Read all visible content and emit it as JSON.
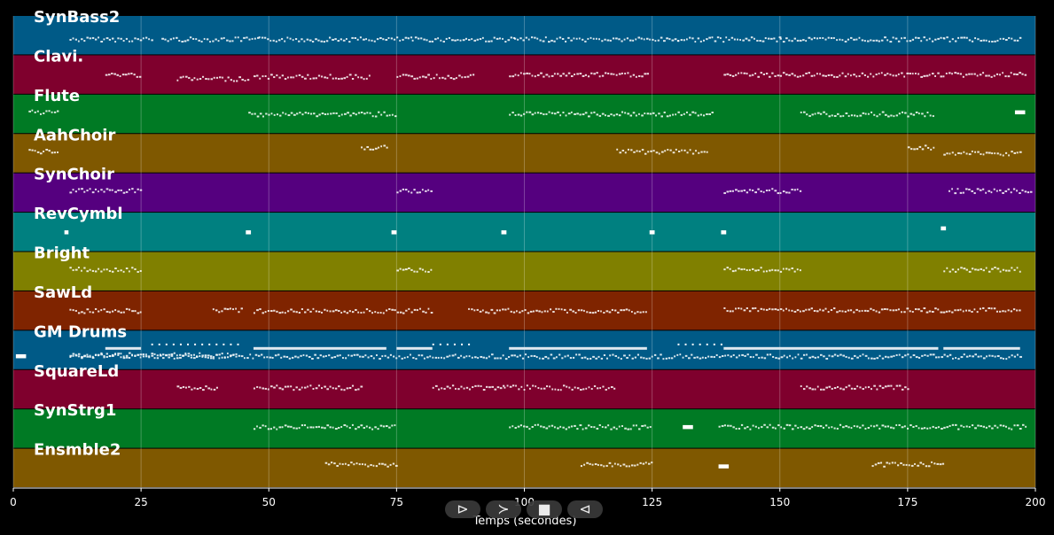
{
  "chart_data": {
    "type": "piano-roll",
    "xlabel": "Temps (secondes)",
    "xlim": [
      0,
      200
    ],
    "xticks": [
      0,
      25,
      50,
      75,
      100,
      125,
      150,
      175,
      200
    ],
    "grid": true,
    "tracks": [
      {
        "name": "SynBass2",
        "color": "#005a87",
        "notes": [
          [
            11,
            27,
            0.6
          ],
          [
            29,
            48,
            0.6
          ],
          [
            48,
            78,
            0.6
          ],
          [
            78,
            98,
            0.6
          ],
          [
            98,
            130,
            0.6
          ],
          [
            130,
            150,
            0.6
          ],
          [
            150,
            182,
            0.6
          ],
          [
            182,
            197,
            0.6
          ]
        ]
      },
      {
        "name": "Clavi.",
        "color": "#7f002d",
        "notes": [
          [
            18,
            25,
            0.5
          ],
          [
            32,
            46,
            0.6
          ],
          [
            47,
            70,
            0.55
          ],
          [
            75,
            90,
            0.55
          ],
          [
            97,
            124,
            0.5
          ],
          [
            139,
            198,
            0.5
          ]
        ]
      },
      {
        "name": "Flute",
        "color": "#007a24",
        "notes": [
          [
            3,
            9,
            0.45
          ],
          [
            46,
            75,
            0.5
          ],
          [
            97,
            137,
            0.5
          ],
          [
            154,
            180,
            0.5
          ],
          [
            196,
            198,
            0.45
          ]
        ]
      },
      {
        "name": "AahChoir",
        "color": "#7f5800",
        "notes": [
          [
            3,
            9,
            0.45
          ],
          [
            68,
            73,
            0.35
          ],
          [
            118,
            136,
            0.45
          ],
          [
            175,
            180,
            0.35
          ],
          [
            182,
            197,
            0.5
          ]
        ]
      },
      {
        "name": "SynChoir",
        "color": "#55007f",
        "notes": [
          [
            11,
            25,
            0.45
          ],
          [
            75,
            82,
            0.45
          ],
          [
            139,
            154,
            0.45
          ],
          [
            183,
            199,
            0.45
          ]
        ]
      },
      {
        "name": "RevCymbl",
        "color": "#008080",
        "notes": [
          [
            10,
            10.8,
            0.5
          ],
          [
            45.5,
            46.5,
            0.5
          ],
          [
            74,
            75,
            0.5
          ],
          [
            95.5,
            96.5,
            0.5
          ],
          [
            124.5,
            125.5,
            0.5
          ],
          [
            138.5,
            139.5,
            0.5
          ],
          [
            181.5,
            182.5,
            0.4
          ]
        ]
      },
      {
        "name": "Bright",
        "color": "#808000",
        "notes": [
          [
            11,
            25,
            0.45
          ],
          [
            75,
            82,
            0.45
          ],
          [
            139,
            154,
            0.45
          ],
          [
            182,
            197,
            0.45
          ]
        ]
      },
      {
        "name": "SawLd",
        "color": "#7f2400",
        "notes": [
          [
            11,
            25,
            0.5
          ],
          [
            39,
            45,
            0.48
          ],
          [
            47,
            82,
            0.5
          ],
          [
            89,
            124,
            0.5
          ],
          [
            139,
            197,
            0.48
          ]
        ]
      },
      {
        "name": "GM Drums",
        "color": "#005a87",
        "notes": [
          [
            0.5,
            2.5,
            0.65
          ],
          [
            11,
            44,
            0.62
          ],
          [
            11,
            197,
            0.66
          ]
        ],
        "bars": [
          [
            18,
            25,
            0.45
          ],
          [
            47,
            73,
            0.45
          ],
          [
            75,
            82,
            0.45
          ],
          [
            97,
            124,
            0.45
          ],
          [
            139,
            181,
            0.45
          ],
          [
            182,
            197,
            0.45
          ]
        ],
        "dots": [
          [
            27,
            44,
            0.35
          ],
          [
            82,
            90,
            0.35
          ],
          [
            130,
            139,
            0.35
          ]
        ]
      },
      {
        "name": "SquareLd",
        "color": "#7f002d",
        "notes": [
          [
            32,
            40,
            0.45
          ],
          [
            47,
            68,
            0.45
          ],
          [
            82,
            96,
            0.45
          ],
          [
            96,
            118,
            0.45
          ],
          [
            154,
            175,
            0.45
          ]
        ]
      },
      {
        "name": "SynStrg1",
        "color": "#007a24",
        "notes": [
          [
            47,
            75,
            0.45
          ],
          [
            97,
            125,
            0.45
          ],
          [
            131,
            133,
            0.45
          ],
          [
            138,
            198,
            0.45
          ]
        ]
      },
      {
        "name": "Ensmble2",
        "color": "#7f5800",
        "notes": [
          [
            61,
            75,
            0.4
          ],
          [
            111,
            125,
            0.4
          ],
          [
            138,
            140,
            0.45
          ],
          [
            168,
            182,
            0.4
          ]
        ]
      }
    ]
  },
  "transport": {
    "play_forward": "⊳",
    "next": "≻",
    "stop": "■",
    "play_back": "⊲"
  }
}
